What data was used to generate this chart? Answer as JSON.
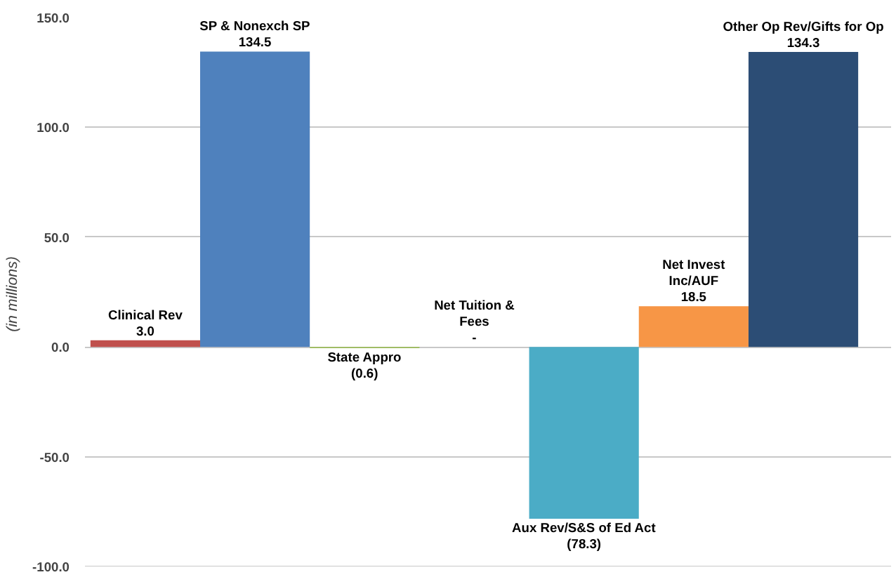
{
  "chart_data": {
    "type": "bar",
    "ylabel": "(in  millions)",
    "categories": [
      "Clinical Rev",
      "SP & Nonexch SP",
      "State Appro",
      "Net Tuition & Fees",
      "Aux Rev/S&S of Ed Act",
      "Net Invest Inc/AUF",
      "Other Op Rev/Gifts for Op"
    ],
    "values": [
      3.0,
      134.5,
      -0.6,
      0,
      -78.3,
      18.5,
      134.3
    ],
    "value_labels": [
      "3.0",
      "134.5",
      "(0.6)",
      "-",
      "(78.3)",
      "18.5",
      "134.3"
    ],
    "colors": [
      "#c0504d",
      "#4f81bd",
      "#9bbb59",
      "#8064a2",
      "#4bacc6",
      "#f79646",
      "#2c4d75"
    ],
    "ylim": [
      -100,
      150
    ],
    "yticks": [
      {
        "value": -100,
        "label": "-100.0"
      },
      {
        "value": -50,
        "label": "-50.0"
      },
      {
        "value": 0,
        "label": "0.0"
      },
      {
        "value": 50,
        "label": "50.0"
      },
      {
        "value": 100,
        "label": "100.0"
      },
      {
        "value": 150,
        "label": "150.0"
      }
    ],
    "grid": "y",
    "tick_labels": "y"
  }
}
